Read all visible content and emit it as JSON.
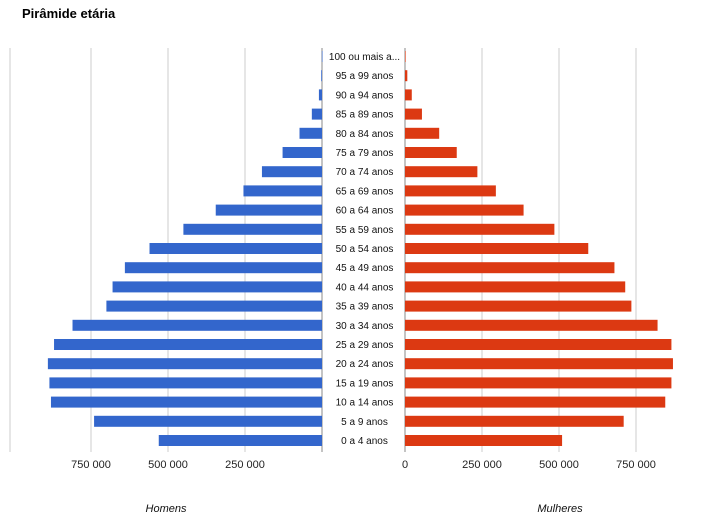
{
  "title": "Pirâmide etária",
  "colors": {
    "men": "#3366cc",
    "women": "#dc3912",
    "grid": "#cccccc"
  },
  "chart_data": {
    "type": "bar",
    "orientation": "horizontal",
    "layout": "population-pyramid",
    "title": "Pirâmide etária",
    "categories": [
      "0 a 4 anos",
      "5 a 9 anos",
      "10 a 14 anos",
      "15 a 19 anos",
      "20 a 24 anos",
      "25 a 29 anos",
      "30 a 34 anos",
      "35 a 39 anos",
      "40 a 44 anos",
      "45 a 49 anos",
      "50 a 54 anos",
      "55 a 59 anos",
      "60 a 64 anos",
      "65 a 69 anos",
      "70 a 74 anos",
      "75 a 79 anos",
      "80 a 84 anos",
      "85 a 89 anos",
      "90 a 94 anos",
      "95 a 99 anos",
      "100 ou mais a..."
    ],
    "series": [
      {
        "name": "Homens",
        "values": [
          530000,
          740000,
          880000,
          885000,
          890000,
          870000,
          810000,
          700000,
          680000,
          640000,
          560000,
          450000,
          345000,
          255000,
          195000,
          128000,
          73000,
          33000,
          10000,
          2500,
          500
        ]
      },
      {
        "name": "Mulheres",
        "values": [
          510000,
          710000,
          845000,
          865000,
          870000,
          865000,
          820000,
          735000,
          715000,
          680000,
          595000,
          485000,
          385000,
          295000,
          235000,
          168000,
          111000,
          55000,
          22000,
          7500,
          1500
        ]
      }
    ],
    "left_axis": {
      "ticks": [
        750000,
        500000,
        250000
      ],
      "tick_labels": [
        "750 000",
        "500 000",
        "250 000"
      ]
    },
    "right_axis": {
      "ticks": [
        0,
        250000,
        500000,
        750000
      ],
      "tick_labels": [
        "0",
        "250 000",
        "500 000",
        "750 000"
      ]
    },
    "xlim": [
      0,
      900000
    ],
    "grid": true
  }
}
